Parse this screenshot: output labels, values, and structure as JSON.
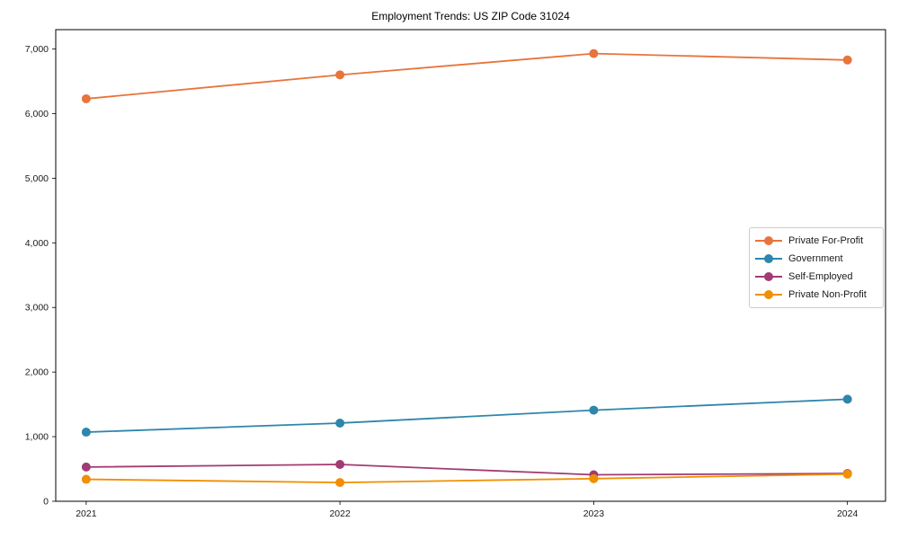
{
  "chart_data": {
    "type": "line",
    "title": "Employment Trends: US ZIP Code 31024",
    "categories": [
      "2021",
      "2022",
      "2023",
      "2024"
    ],
    "x": [
      2021,
      2022,
      2023,
      2024
    ],
    "series": [
      {
        "name": "Private For-Profit",
        "color": "#E8743B",
        "values": [
          6230,
          6600,
          6930,
          6830
        ]
      },
      {
        "name": "Government",
        "color": "#2E86AB",
        "values": [
          1070,
          1210,
          1410,
          1580
        ]
      },
      {
        "name": "Self-Employed",
        "color": "#A23B72",
        "values": [
          530,
          570,
          410,
          430
        ]
      },
      {
        "name": "Private Non-Profit",
        "color": "#F18F01",
        "values": [
          340,
          290,
          350,
          420
        ]
      }
    ],
    "xlabel": "",
    "ylabel": "",
    "xlim": [
      2020.88,
      2024.15
    ],
    "ylim": [
      0,
      7300
    ],
    "yticks": [
      0,
      1000,
      2000,
      3000,
      4000,
      5000,
      6000,
      7000
    ],
    "ytick_labels": [
      "0",
      "1,000",
      "2,000",
      "3,000",
      "4,000",
      "5,000",
      "6,000",
      "7,000"
    ],
    "grid": false,
    "legend_position": "center-right",
    "marker": "circle",
    "axis_color": "#000000",
    "tick_label_color": "#1a1a1a"
  }
}
